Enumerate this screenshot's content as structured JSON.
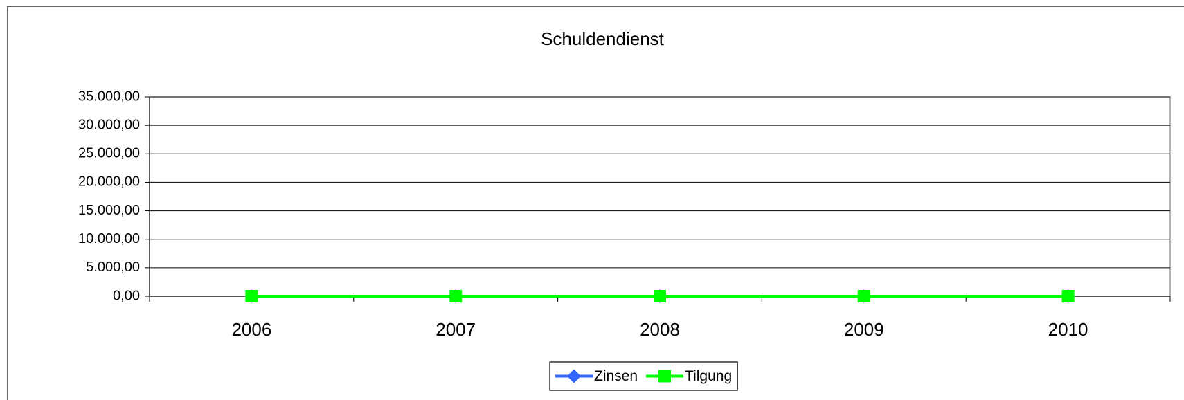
{
  "chart_data": {
    "type": "line",
    "title": "Schuldendienst",
    "categories": [
      "2006",
      "2007",
      "2008",
      "2009",
      "2010"
    ],
    "series": [
      {
        "name": "Zinsen",
        "color": "#3366ff",
        "marker": "diamond",
        "values": [
          0,
          0,
          0,
          0,
          0
        ]
      },
      {
        "name": "Tilgung",
        "color": "#00ff00",
        "marker": "square",
        "values": [
          0,
          0,
          0,
          0,
          0
        ]
      }
    ],
    "ylim": [
      0,
      35000
    ],
    "yticks": [
      {
        "value": 0,
        "label": "0,00"
      },
      {
        "value": 5000,
        "label": "5.000,00"
      },
      {
        "value": 10000,
        "label": "10.000,00"
      },
      {
        "value": 15000,
        "label": "15.000,00"
      },
      {
        "value": 20000,
        "label": "20.000,00"
      },
      {
        "value": 25000,
        "label": "25.000,00"
      },
      {
        "value": 30000,
        "label": "30.000,00"
      },
      {
        "value": 35000,
        "label": "35.000,00"
      }
    ],
    "grid": true,
    "legend": "bottom"
  }
}
